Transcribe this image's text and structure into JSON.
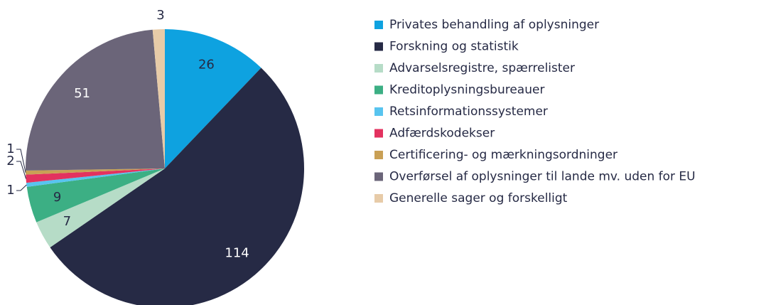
{
  "chart_data": {
    "type": "pie",
    "categories": [
      "Privates behandling af oplysninger",
      "Forskning og statistik",
      "Advarselsregistre, spærrelister",
      "Kreditoplysningsbureauer",
      "Retsinformationssystemer",
      "Adfærdskodekser",
      "Certificering- og mærkningsordninger",
      "Overførsel af oplysninger til lande mv. uden for EU",
      "Generelle sager og forskelligt"
    ],
    "values": [
      26,
      114,
      7,
      9,
      1,
      2,
      1,
      51,
      3
    ],
    "colors": [
      "#0ea2e0",
      "#262a45",
      "#b6dcc7",
      "#3caf84",
      "#58c4ef",
      "#e3325f",
      "#c9a055",
      "#6b6579",
      "#e7cba8"
    ],
    "legend": "right"
  }
}
